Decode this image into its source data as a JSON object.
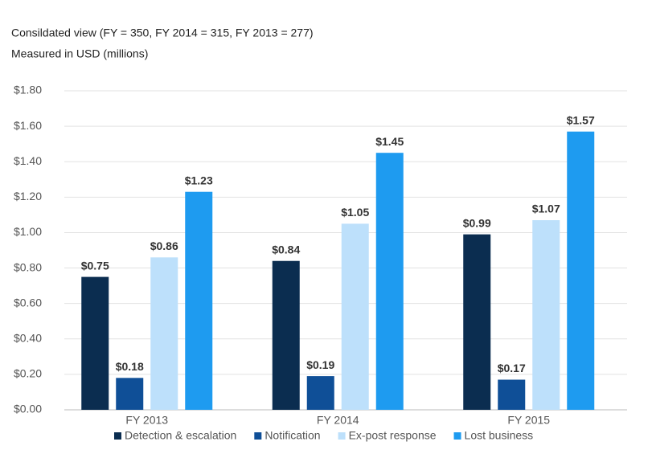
{
  "chart_data": {
    "type": "bar",
    "title": "Consildated view (FY = 350, FY 2014 = 315, FY 2013 = 277)",
    "subtitle": "Measured in USD (millions)",
    "categories": [
      "FY 2013",
      "FY 2014",
      "FY 2015"
    ],
    "series": [
      {
        "name": "Detection & escalation",
        "color": "#0b2d50",
        "values": [
          0.75,
          0.84,
          0.99
        ],
        "value_labels": [
          "$0.75",
          "$0.84",
          "$0.99"
        ]
      },
      {
        "name": "Notification",
        "color": "#0f4f97",
        "values": [
          0.18,
          0.19,
          0.17
        ],
        "value_labels": [
          "$0.18",
          "$0.19",
          "$0.17"
        ]
      },
      {
        "name": "Ex-post response",
        "color": "#bde0fb",
        "values": [
          0.86,
          1.05,
          1.07
        ],
        "value_labels": [
          "$0.86",
          "$1.05",
          "$1.07"
        ]
      },
      {
        "name": "Lost business",
        "color": "#1e9bf0",
        "values": [
          1.23,
          1.45,
          1.57
        ],
        "value_labels": [
          "$1.23",
          "$1.45",
          "$1.57"
        ]
      }
    ],
    "ylim": [
      0,
      1.8
    ],
    "yticks": [
      {
        "value": 0,
        "label": "$0.00"
      },
      {
        "value": 0.2,
        "label": "$0.20"
      },
      {
        "value": 0.4,
        "label": "$0.40"
      },
      {
        "value": 0.6,
        "label": "$0.60"
      },
      {
        "value": 0.8,
        "label": "$0.80"
      },
      {
        "value": 1.0,
        "label": "$1.00"
      },
      {
        "value": 1.2,
        "label": "$1.20"
      },
      {
        "value": 1.4,
        "label": "$1.40"
      },
      {
        "value": 1.6,
        "label": "$1.60"
      },
      {
        "value": 1.8,
        "label": "$1.80"
      }
    ],
    "grid": true
  }
}
